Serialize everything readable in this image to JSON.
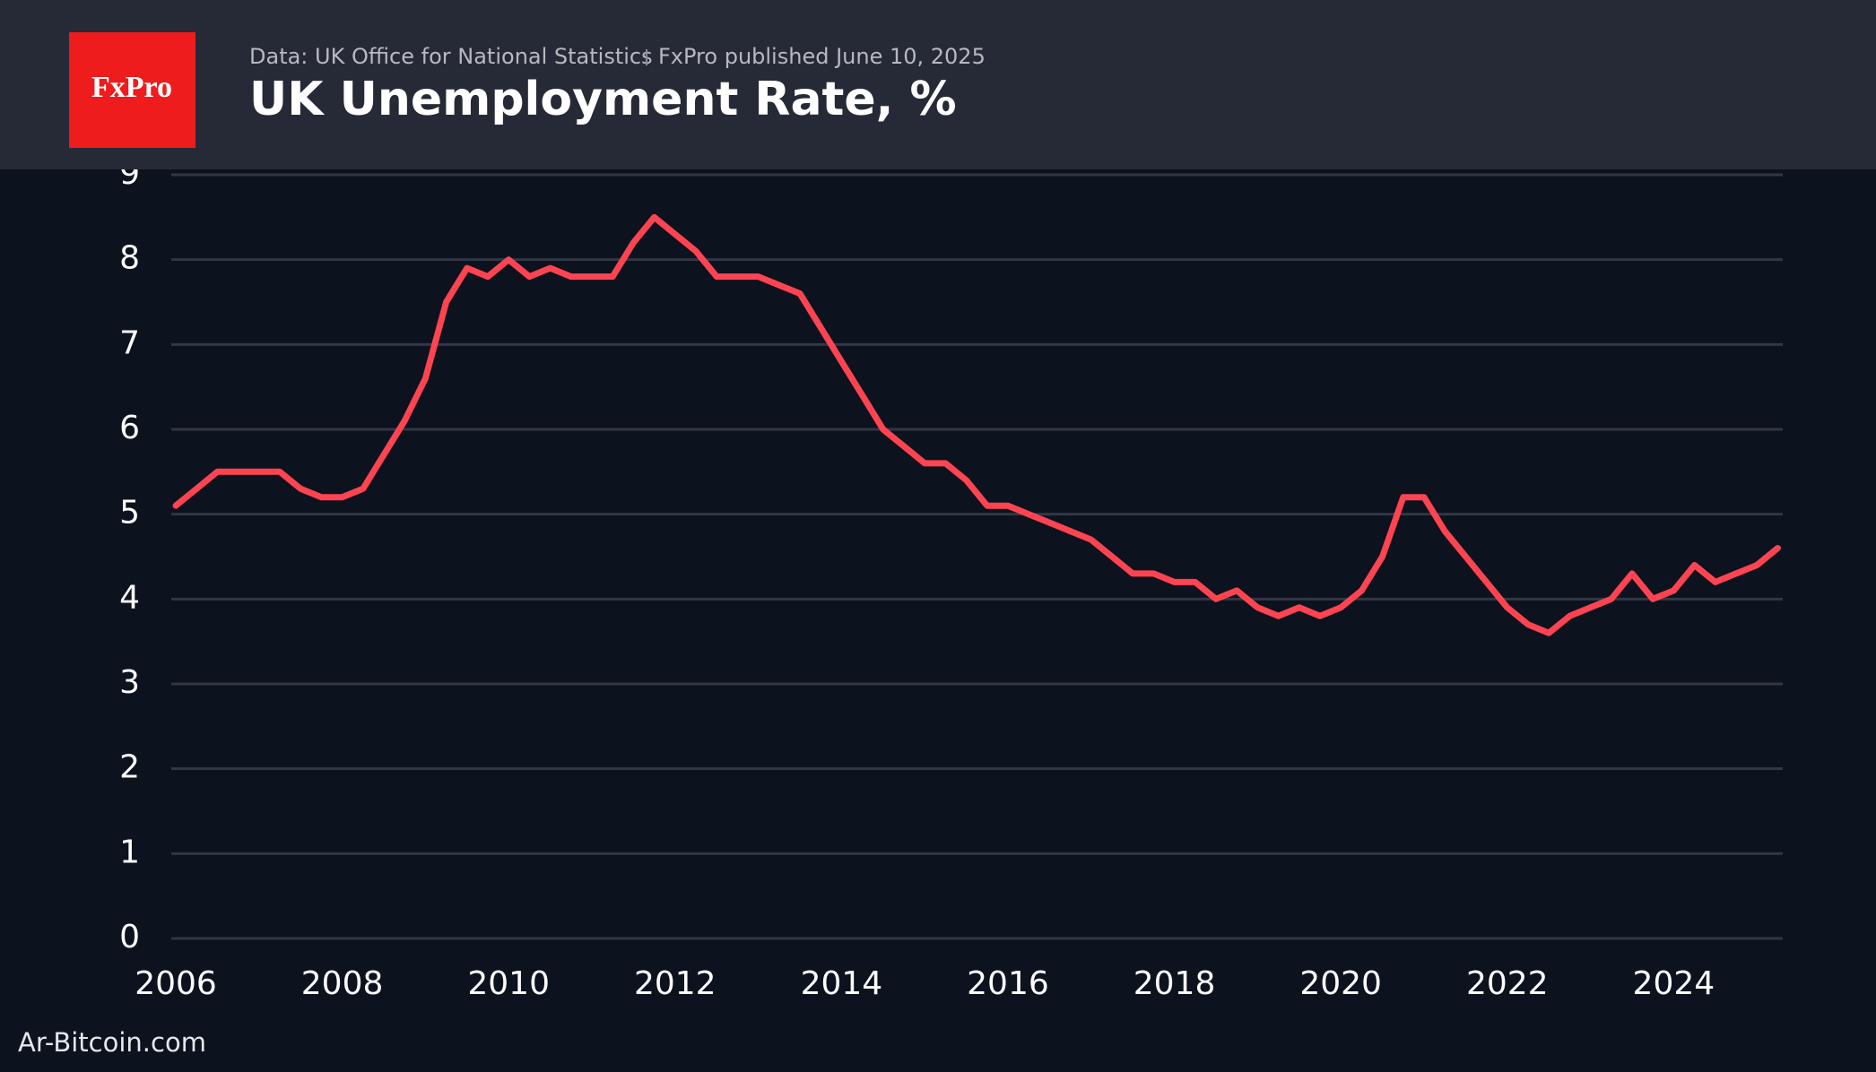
{
  "logo": "FxPro",
  "source": "Data: UK Office for National Statistics",
  "published": "FxPro published June 10, 2025",
  "footer": "Ar-Bitcoin.com",
  "chart_data": {
    "type": "line",
    "title": "UK Unemployment Rate, %",
    "x": [
      2006.0,
      2006.25,
      2006.5,
      2006.75,
      2007.0,
      2007.25,
      2007.5,
      2007.75,
      2008.0,
      2008.25,
      2008.5,
      2008.75,
      2009.0,
      2009.25,
      2009.5,
      2009.75,
      2010.0,
      2010.25,
      2010.5,
      2010.75,
      2011.0,
      2011.25,
      2011.5,
      2011.75,
      2012.0,
      2012.25,
      2012.5,
      2012.75,
      2013.0,
      2013.25,
      2013.5,
      2013.75,
      2014.0,
      2014.25,
      2014.5,
      2014.75,
      2015.0,
      2015.25,
      2015.5,
      2015.75,
      2016.0,
      2016.25,
      2016.5,
      2016.75,
      2017.0,
      2017.25,
      2017.5,
      2017.75,
      2018.0,
      2018.25,
      2018.5,
      2018.75,
      2019.0,
      2019.25,
      2019.5,
      2019.75,
      2020.0,
      2020.25,
      2020.5,
      2020.75,
      2021.0,
      2021.25,
      2021.5,
      2021.75,
      2022.0,
      2022.25,
      2022.5,
      2022.75,
      2023.0,
      2023.25,
      2023.5,
      2023.75,
      2024.0,
      2024.25,
      2024.5,
      2024.75,
      2025.0,
      2025.25
    ],
    "series": [
      {
        "name": "UK Unemployment Rate",
        "color": "#ff4451",
        "values": [
          5.1,
          5.3,
          5.5,
          5.5,
          5.5,
          5.5,
          5.3,
          5.2,
          5.2,
          5.3,
          5.7,
          6.1,
          6.6,
          7.5,
          7.9,
          7.8,
          8.0,
          7.8,
          7.9,
          7.8,
          7.8,
          7.8,
          8.2,
          8.5,
          8.3,
          8.1,
          7.8,
          7.8,
          7.8,
          7.7,
          7.6,
          7.2,
          6.8,
          6.4,
          6.0,
          5.8,
          5.6,
          5.6,
          5.4,
          5.1,
          5.1,
          5.0,
          4.9,
          4.8,
          4.7,
          4.5,
          4.3,
          4.3,
          4.2,
          4.2,
          4.0,
          4.1,
          3.9,
          3.8,
          3.9,
          3.8,
          3.9,
          4.1,
          4.5,
          5.2,
          5.2,
          4.8,
          4.5,
          4.2,
          3.9,
          3.7,
          3.6,
          3.8,
          3.9,
          4.0,
          4.3,
          4.0,
          4.1,
          4.4,
          4.2,
          4.3,
          4.4,
          4.6
        ]
      }
    ],
    "xlim": [
      2006,
      2025.3
    ],
    "xticks": [
      2006,
      2008,
      2010,
      2012,
      2014,
      2016,
      2018,
      2020,
      2022,
      2024
    ],
    "ylim": [
      0,
      9
    ],
    "yticks": [
      0,
      1,
      2,
      3,
      4,
      5,
      6,
      7,
      8,
      9
    ],
    "grid": true
  }
}
